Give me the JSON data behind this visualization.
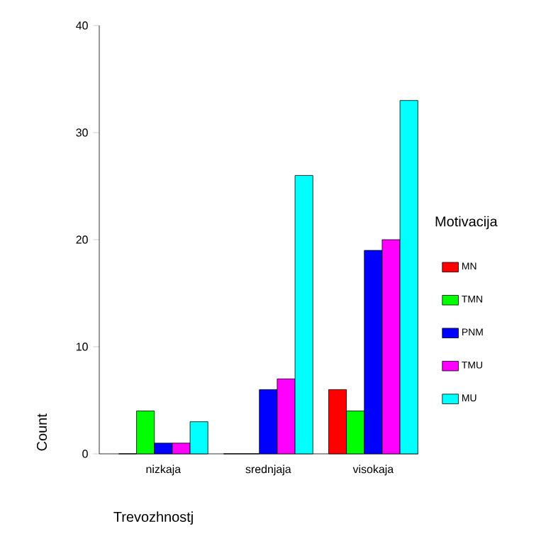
{
  "chart_data": {
    "type": "bar",
    "xlabel": "Trevozhnostj",
    "ylabel": "Count",
    "legend_title": "Motivacija",
    "categories": [
      "nizkaja",
      "srednjaja",
      "visokaja"
    ],
    "series": [
      {
        "name": "MN",
        "color": "#ff0000",
        "values": [
          0,
          0,
          6
        ]
      },
      {
        "name": "TMN",
        "color": "#00ff00",
        "values": [
          4,
          0,
          4
        ]
      },
      {
        "name": "PNM",
        "color": "#0000ff",
        "values": [
          1,
          6,
          19
        ]
      },
      {
        "name": "TMU",
        "color": "#ff00ff",
        "values": [
          1,
          7,
          20
        ]
      },
      {
        "name": "MU",
        "color": "#00ffff",
        "values": [
          3,
          26,
          33
        ]
      }
    ],
    "ylim": [
      0,
      40
    ],
    "yticks": [
      0,
      10,
      20,
      30,
      40
    ],
    "grid": false,
    "legend": "right"
  }
}
